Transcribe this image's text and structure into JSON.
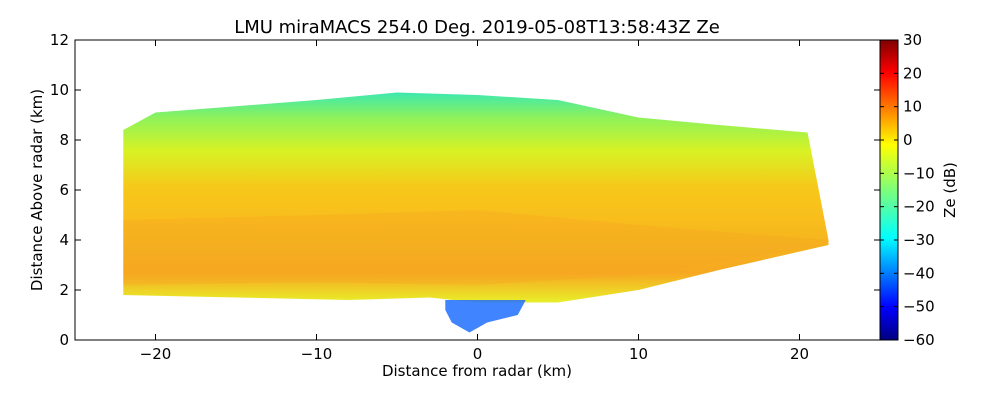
{
  "chart_data": {
    "type": "heatmap",
    "title": "LMU miraMACS 254.0 Deg. 2019-05-08T13:58:43Z  Ze",
    "xlabel": "Distance from radar (km)",
    "ylabel": "Distance Above radar  (km)",
    "xlim": [
      -25,
      25
    ],
    "ylim": [
      0,
      12
    ],
    "xticks": [
      -20,
      -10,
      0,
      10,
      20
    ],
    "xtick_labels": [
      "−20",
      "−10",
      "0",
      "10",
      "20"
    ],
    "yticks": [
      0,
      2,
      4,
      6,
      8,
      10,
      12
    ],
    "ytick_labels": [
      "0",
      "2",
      "4",
      "6",
      "8",
      "10",
      "12"
    ],
    "grid": false,
    "colorbar": {
      "label": "Ze (dB)",
      "range": [
        -60,
        30
      ],
      "ticks": [
        30,
        20,
        10,
        0,
        -10,
        -20,
        -30,
        -40,
        -50,
        -60
      ],
      "tick_labels": [
        "30",
        "20",
        "10",
        "0",
        "−10",
        "−20",
        "−30",
        "−40",
        "−50",
        "−60"
      ],
      "colormap": "jet"
    },
    "echo_region": {
      "cloud_top_km": [
        [
          -22,
          8.4
        ],
        [
          -20,
          9.1
        ],
        [
          -10,
          9.6
        ],
        [
          -5,
          9.9
        ],
        [
          0,
          9.8
        ],
        [
          5,
          9.6
        ],
        [
          10,
          8.9
        ],
        [
          15,
          8.6
        ],
        [
          20.5,
          8.3
        ],
        [
          21.8,
          4.0
        ]
      ],
      "cloud_base_km": [
        [
          -22,
          1.8
        ],
        [
          -15,
          1.7
        ],
        [
          -8,
          1.6
        ],
        [
          -3,
          1.7
        ],
        [
          0,
          1.5
        ],
        [
          5,
          1.5
        ],
        [
          10,
          2.0
        ],
        [
          15,
          2.8
        ],
        [
          21.8,
          3.8
        ]
      ],
      "reflectivity_profile": [
        {
          "height_km": 9.5,
          "ze_db": -22
        },
        {
          "height_km": 8.5,
          "ze_db": -18
        },
        {
          "height_km": 7.5,
          "ze_db": -12
        },
        {
          "height_km": 6.5,
          "ze_db": -7
        },
        {
          "height_km": 5.5,
          "ze_db": -4
        },
        {
          "height_km": 4.5,
          "ze_db": -2
        },
        {
          "height_km": 3.5,
          "ze_db": -3
        },
        {
          "height_km": 2.5,
          "ze_db": -2
        },
        {
          "height_km": 1.8,
          "ze_db": -8
        }
      ],
      "fallstreak_x_km": [
        -2,
        3
      ],
      "fallstreak_ze_db": -35
    }
  }
}
